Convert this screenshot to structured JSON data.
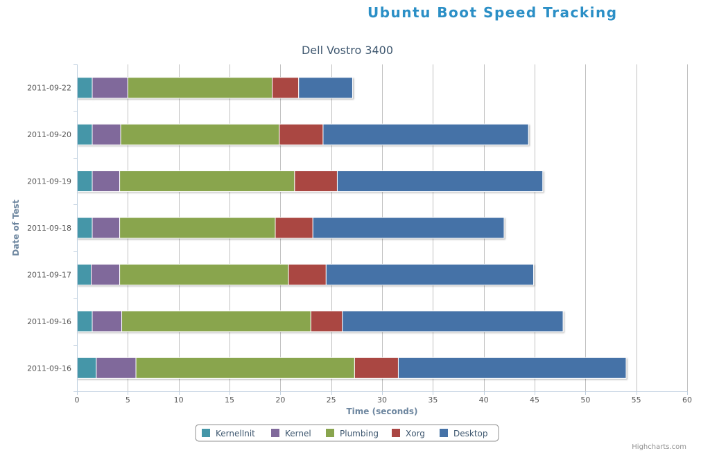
{
  "header": {
    "title": "Ubuntu Boot Speed Tracking"
  },
  "chart_data": {
    "type": "bar",
    "orientation": "horizontal",
    "stacking": "normal",
    "title": "",
    "subtitle": "Dell Vostro 3400",
    "xlabel": "Time (seconds)",
    "ylabel": "Date of Test",
    "categories": [
      "2011-09-22",
      "2011-09-20",
      "2011-09-19",
      "2011-09-18",
      "2011-09-17",
      "2011-09-16",
      "2011-09-16"
    ],
    "xlim": [
      0,
      60
    ],
    "xticks": [
      0,
      5,
      10,
      15,
      20,
      25,
      30,
      35,
      40,
      45,
      50,
      55,
      60
    ],
    "grid": true,
    "legend_position": "bottom-center",
    "series": [
      {
        "name": "KernelInit",
        "color": "#4496a8",
        "values": [
          1.5,
          1.5,
          1.5,
          1.5,
          1.4,
          1.5,
          1.9
        ]
      },
      {
        "name": "Kernel",
        "color": "#80699b",
        "values": [
          3.5,
          2.8,
          2.7,
          2.7,
          2.8,
          2.9,
          3.9
        ]
      },
      {
        "name": "Plumbing",
        "color": "#89a54e",
        "values": [
          14.2,
          15.6,
          17.2,
          15.3,
          16.6,
          18.6,
          21.5
        ]
      },
      {
        "name": "Xorg",
        "color": "#aa4643",
        "values": [
          2.6,
          4.3,
          4.2,
          3.7,
          3.7,
          3.1,
          4.3
        ]
      },
      {
        "name": "Desktop",
        "color": "#4572a7",
        "values": [
          5.3,
          20.2,
          20.2,
          18.8,
          20.4,
          21.7,
          22.4
        ]
      }
    ],
    "credits": "Highcharts.com"
  }
}
